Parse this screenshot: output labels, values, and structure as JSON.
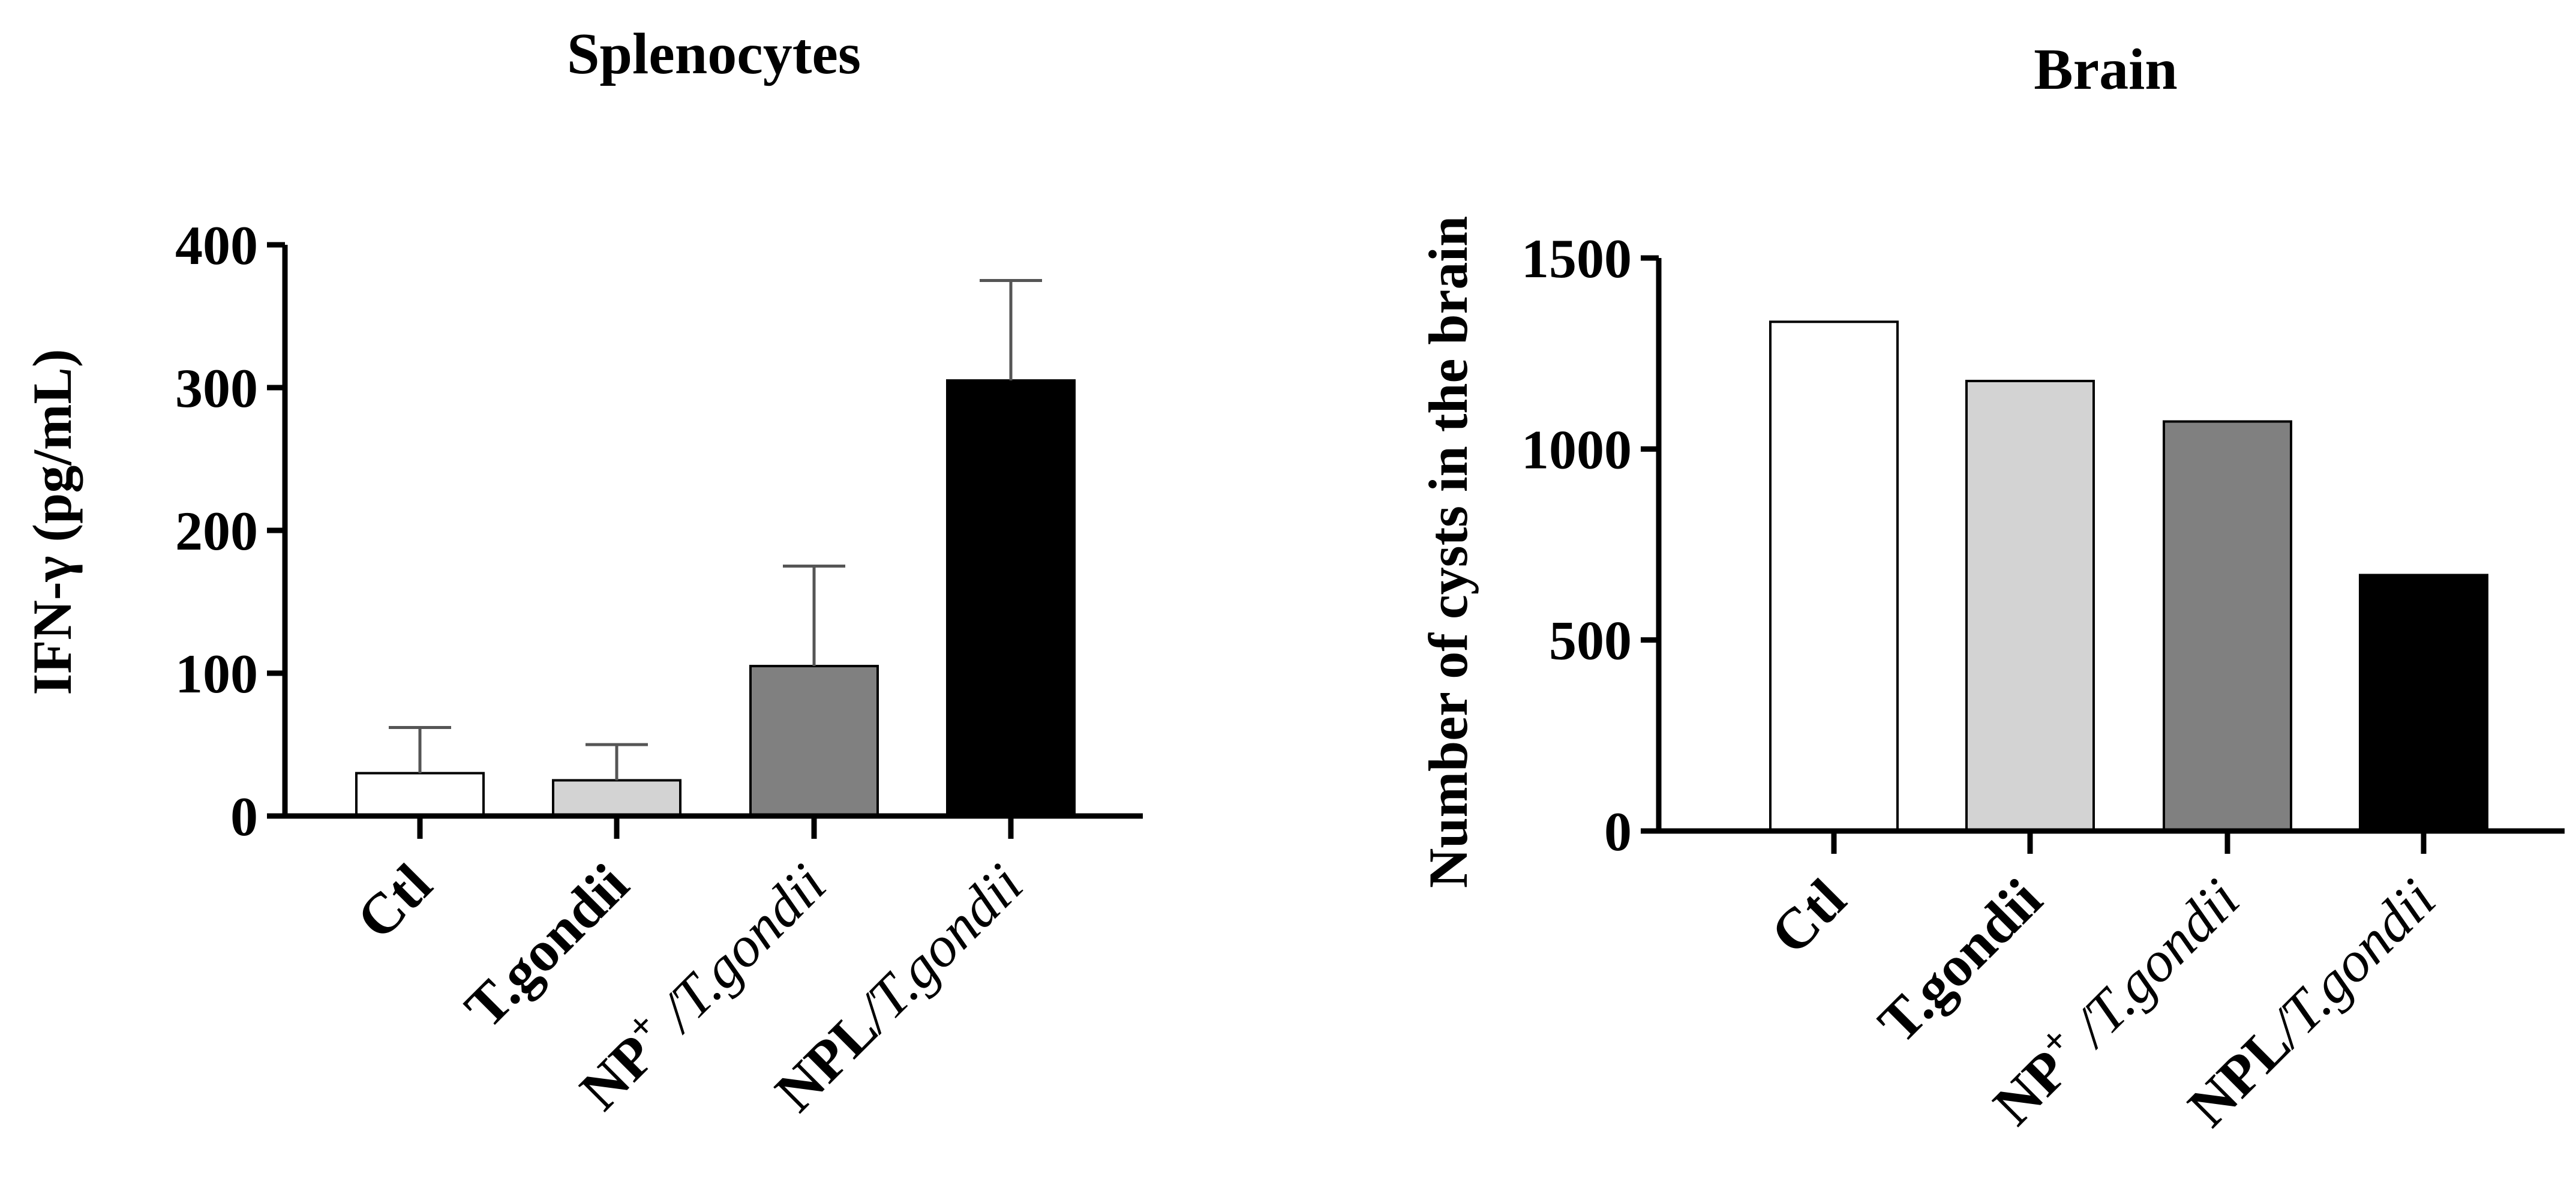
{
  "chart_data": [
    {
      "type": "bar",
      "title": "Splenocytes",
      "ylabel": "IFN-γ (pg/mL)",
      "xlabel": "",
      "ylim": [
        0,
        400
      ],
      "yticks": [
        0,
        100,
        200,
        300,
        400
      ],
      "categories": [
        {
          "main": "Ctl",
          "sup": "",
          "italic": ""
        },
        {
          "main": "T.gondii",
          "sup": "",
          "italic": ""
        },
        {
          "main": "NP",
          "sup": "+",
          "italic": "/T.gondii"
        },
        {
          "main": "NPL",
          "sup": "",
          "italic": "/T.gondii"
        }
      ],
      "values": [
        30,
        25,
        105,
        305
      ],
      "errors": [
        32,
        25,
        70,
        70
      ],
      "colors": [
        "#ffffff",
        "#d3d3d3",
        "#808080",
        "#000000"
      ]
    },
    {
      "type": "bar",
      "title": "Brain",
      "ylabel": "Number of cysts in the brain",
      "xlabel": "",
      "ylim": [
        0,
        1500
      ],
      "yticks": [
        0,
        500,
        1000,
        1500
      ],
      "categories": [
        {
          "main": "Ctl",
          "sup": "",
          "italic": ""
        },
        {
          "main": "T.gondii",
          "sup": "",
          "italic": ""
        },
        {
          "main": "NP",
          "sup": "+",
          "italic": "/T.gondii"
        },
        {
          "main": "NPL",
          "sup": "",
          "italic": "/T.gondii"
        }
      ],
      "values": [
        1333,
        1178,
        1072,
        670
      ],
      "colors": [
        "#ffffff",
        "#d3d3d3",
        "#808080",
        "#000000"
      ]
    }
  ]
}
